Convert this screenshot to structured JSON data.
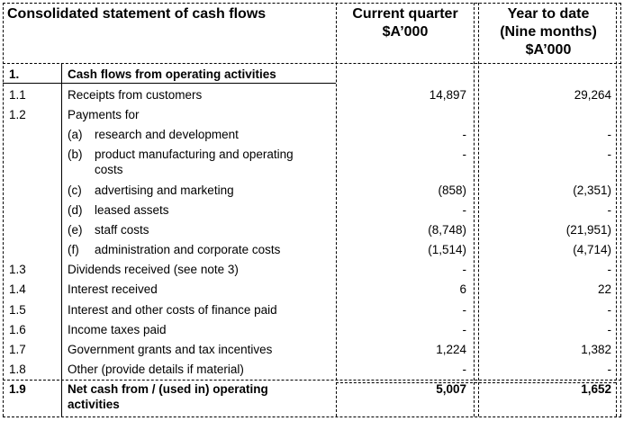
{
  "header": {
    "title": "Consolidated statement of cash flows",
    "col_current": [
      "Current quarter",
      "$A’000"
    ],
    "col_ytd": [
      "Year to date",
      "(Nine months)",
      "$A’000"
    ]
  },
  "rows": [
    {
      "num": "1.",
      "label": "Cash flows from operating activities",
      "cur": "",
      "ytd": "",
      "bold": true
    },
    {
      "num": "1.1",
      "label": "Receipts from customers",
      "cur": "14,897",
      "ytd": "29,264"
    },
    {
      "num": "1.2",
      "label": "Payments for",
      "cur": "",
      "ytd": ""
    },
    {
      "num": "",
      "letter": "(a)",
      "label": "research and development",
      "cur": "-",
      "ytd": "-"
    },
    {
      "num": "",
      "letter": "(b)",
      "label": "product manufacturing and operating",
      "label2": "costs",
      "cur": "-",
      "ytd": "-"
    },
    {
      "num": "",
      "letter": "(c)",
      "label": "advertising and marketing",
      "cur": "(858)",
      "ytd": "(2,351)"
    },
    {
      "num": "",
      "letter": "(d)",
      "label": "leased assets",
      "cur": "-",
      "ytd": "-"
    },
    {
      "num": "",
      "letter": "(e)",
      "label": "staff costs",
      "cur": "(8,748)",
      "ytd": "(21,951)"
    },
    {
      "num": "",
      "letter": "(f)",
      "label": "administration and corporate costs",
      "cur": "(1,514)",
      "ytd": "(4,714)"
    },
    {
      "num": "1.3",
      "label": "Dividends received (see note 3)",
      "cur": "-",
      "ytd": "-"
    },
    {
      "num": "1.4",
      "label": "Interest received",
      "cur": "6",
      "ytd": "22"
    },
    {
      "num": "1.5",
      "label": "Interest and other costs of finance paid",
      "cur": "-",
      "ytd": "-"
    },
    {
      "num": "1.6",
      "label": "Income taxes paid",
      "cur": "-",
      "ytd": "-"
    },
    {
      "num": "1.7",
      "label": "Government grants and tax incentives",
      "cur": "1,224",
      "ytd": "1,382"
    },
    {
      "num": "1.8",
      "label": "Other (provide details if material)",
      "cur": "-",
      "ytd": "-"
    },
    {
      "num": "1.9",
      "label": "Net cash from / (used in) operating",
      "label2": "activities",
      "cur": "5,007",
      "ytd": "1,652",
      "bold": true
    }
  ]
}
